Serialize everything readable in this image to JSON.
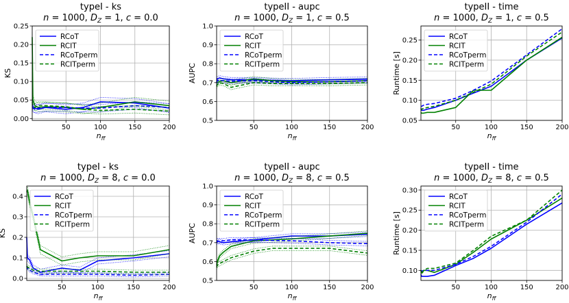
{
  "colors": {
    "rcot": "#0000ff",
    "rcit": "#008000",
    "grid": "#b0b0b0"
  },
  "legend_names": [
    "RCoT",
    "RCIT",
    "RCoTperm",
    "RCITperm"
  ],
  "chart_data": [
    {
      "type": "line",
      "title_line1": "typeI - ks",
      "title_line2": "n = 1000, D_Z = 1, c = 0.0",
      "title_parts": [
        "n",
        " = 1000, ",
        "D",
        "Z",
        " = 1, ",
        "c",
        " = 0.0"
      ],
      "xlabel": "n_ff",
      "ylabel": "KS",
      "xlim": [
        1,
        200
      ],
      "ylim": [
        -0.005,
        0.25
      ],
      "xticks": [
        50,
        100,
        150,
        200
      ],
      "yticks": [
        0.0,
        0.05,
        0.1,
        0.15,
        0.2,
        0.25
      ],
      "ytick_labels": [
        "0.00",
        "0.05",
        "0.10",
        "0.15",
        "0.20",
        "0.25"
      ],
      "x": [
        1,
        2,
        5,
        10,
        20,
        50,
        75,
        100,
        150,
        200
      ],
      "series": [
        {
          "name": "RCoT",
          "dashed": false,
          "values": [
            0.04,
            0.032,
            0.028,
            0.025,
            0.03,
            0.025,
            0.03,
            0.045,
            0.042,
            0.028
          ],
          "band": 0.012
        },
        {
          "name": "RCIT",
          "dashed": false,
          "values": [
            0.22,
            0.05,
            0.035,
            0.03,
            0.032,
            0.03,
            0.025,
            0.03,
            0.045,
            0.035
          ],
          "band": 0.012
        },
        {
          "name": "RCoTperm",
          "dashed": true,
          "values": [
            0.03,
            0.028,
            0.025,
            0.028,
            0.03,
            0.03,
            0.028,
            0.028,
            0.035,
            0.03
          ],
          "band": 0.01
        },
        {
          "name": "RCITperm",
          "dashed": true,
          "values": [
            0.045,
            0.035,
            0.03,
            0.035,
            0.035,
            0.032,
            0.025,
            0.022,
            0.025,
            0.02
          ],
          "band": 0.01
        }
      ]
    },
    {
      "type": "line",
      "title_line1": "typeII - aupc",
      "title_line2": "n = 1000, D_Z = 1, c = 0.5",
      "title_parts": [
        "n",
        " = 1000, ",
        "D",
        "Z",
        " = 1, ",
        "c",
        " = 0.5"
      ],
      "xlabel": "n_ff",
      "ylabel": "AUPC",
      "xlim": [
        1,
        200
      ],
      "ylim": [
        0.5,
        1.0
      ],
      "xticks": [
        50,
        100,
        150,
        200
      ],
      "yticks": [
        0.5,
        0.6,
        0.7,
        0.8,
        0.9,
        1.0
      ],
      "ytick_labels": [
        "0.5",
        "0.6",
        "0.7",
        "0.8",
        "0.9",
        "1.0"
      ],
      "x": [
        1,
        2,
        5,
        10,
        20,
        50,
        75,
        100,
        150,
        200
      ],
      "series": [
        {
          "name": "RCoT",
          "dashed": false,
          "values": [
            0.7,
            0.72,
            0.725,
            0.72,
            0.715,
            0.715,
            0.712,
            0.71,
            0.715,
            0.718
          ],
          "band": 0.012
        },
        {
          "name": "RCIT",
          "dashed": false,
          "values": [
            0.71,
            0.7,
            0.705,
            0.71,
            0.7,
            0.72,
            0.71,
            0.705,
            0.705,
            0.71
          ],
          "band": 0.012
        },
        {
          "name": "RCoTperm",
          "dashed": true,
          "values": [
            0.7,
            0.71,
            0.712,
            0.71,
            0.708,
            0.71,
            0.705,
            0.7,
            0.705,
            0.71
          ],
          "band": 0.012
        },
        {
          "name": "RCITperm",
          "dashed": true,
          "values": [
            0.68,
            0.69,
            0.7,
            0.695,
            0.675,
            0.7,
            0.695,
            0.695,
            0.695,
            0.7
          ],
          "band": 0.012
        }
      ]
    },
    {
      "type": "line",
      "title_line1": "typeII - time",
      "title_line2": "n = 1000, D_Z = 1, c = 0.5",
      "title_parts": [
        "n",
        " = 1000, ",
        "D",
        "Z",
        " = 1, ",
        "c",
        " = 0.5"
      ],
      "xlabel": "n_ff",
      "ylabel": "Runtime [s]",
      "xlim": [
        1,
        200
      ],
      "ylim": [
        0.05,
        0.285
      ],
      "xticks": [
        50,
        100,
        150,
        200
      ],
      "yticks": [
        0.05,
        0.1,
        0.15,
        0.2,
        0.25
      ],
      "ytick_labels": [
        "0.05",
        "0.10",
        "0.15",
        "0.20",
        "0.25"
      ],
      "x": [
        1,
        2,
        5,
        10,
        20,
        50,
        75,
        100,
        150,
        200
      ],
      "series": [
        {
          "name": "RCoT",
          "dashed": false,
          "values": [
            0.08,
            0.075,
            0.075,
            0.078,
            0.082,
            0.1,
            0.118,
            0.135,
            0.2,
            0.255
          ],
          "band": 0
        },
        {
          "name": "RCIT",
          "dashed": false,
          "values": [
            0.07,
            0.068,
            0.068,
            0.07,
            0.07,
            0.082,
            0.125,
            0.125,
            0.2,
            0.257
          ],
          "band": 0
        },
        {
          "name": "RCoTperm",
          "dashed": true,
          "values": [
            0.085,
            0.085,
            0.088,
            0.09,
            0.092,
            0.105,
            0.125,
            0.148,
            0.213,
            0.278
          ],
          "band": 0
        },
        {
          "name": "RCITperm",
          "dashed": true,
          "values": [
            0.075,
            0.078,
            0.08,
            0.082,
            0.085,
            0.1,
            0.12,
            0.14,
            0.21,
            0.27
          ],
          "band": 0
        }
      ]
    },
    {
      "type": "line",
      "title_line1": "typeI - ks",
      "title_line2": "n = 1000, D_Z = 8, c = 0.0",
      "title_parts": [
        "n",
        " = 1000, ",
        "D",
        "Z",
        " = 8, ",
        "c",
        " = 0.0"
      ],
      "xlabel": "n_ff",
      "ylabel": "KS",
      "xlim": [
        1,
        200
      ],
      "ylim": [
        -0.01,
        0.45
      ],
      "xticks": [
        50,
        100,
        150,
        200
      ],
      "yticks": [
        0.0,
        0.1,
        0.2,
        0.3,
        0.4
      ],
      "ytick_labels": [
        "0.0",
        "0.1",
        "0.2",
        "0.3",
        "0.4"
      ],
      "x": [
        1,
        2,
        5,
        10,
        20,
        50,
        75,
        100,
        150,
        200
      ],
      "series": [
        {
          "name": "RCoT",
          "dashed": false,
          "values": [
            0.2,
            0.1,
            0.09,
            0.05,
            0.03,
            0.05,
            0.04,
            0.085,
            0.1,
            0.12
          ],
          "band": 0.015
        },
        {
          "name": "RCIT",
          "dashed": false,
          "values": [
            0.42,
            0.43,
            0.37,
            0.3,
            0.14,
            0.085,
            0.1,
            0.11,
            0.11,
            0.14
          ],
          "band": 0.02
        },
        {
          "name": "RCoTperm",
          "dashed": true,
          "values": [
            0.06,
            0.05,
            0.04,
            0.03,
            0.02,
            0.02,
            0.02,
            0.02,
            0.015,
            0.02
          ],
          "band": 0.008
        },
        {
          "name": "RCITperm",
          "dashed": true,
          "values": [
            0.06,
            0.055,
            0.05,
            0.04,
            0.035,
            0.035,
            0.035,
            0.035,
            0.03,
            0.03
          ],
          "band": 0.01
        }
      ]
    },
    {
      "type": "line",
      "title_line1": "typeII - aupc",
      "title_line2": "n = 1000, D_Z = 8, c = 0.5",
      "title_parts": [
        "n",
        " = 1000, ",
        "D",
        "Z",
        " = 8, ",
        "c",
        " = 0.5"
      ],
      "xlabel": "n_ff",
      "ylabel": "AUPC",
      "xlim": [
        1,
        200
      ],
      "ylim": [
        0.5,
        1.0
      ],
      "xticks": [
        50,
        100,
        150,
        200
      ],
      "yticks": [
        0.5,
        0.6,
        0.7,
        0.8,
        0.9,
        1.0
      ],
      "ytick_labels": [
        "0.5",
        "0.6",
        "0.7",
        "0.8",
        "0.9",
        "1.0"
      ],
      "x": [
        1,
        2,
        5,
        10,
        20,
        50,
        75,
        100,
        150,
        200
      ],
      "series": [
        {
          "name": "RCoT",
          "dashed": false,
          "values": [
            0.7,
            0.71,
            0.705,
            0.7,
            0.705,
            0.715,
            0.725,
            0.735,
            0.735,
            0.745
          ],
          "band": 0.012
        },
        {
          "name": "RCIT",
          "dashed": false,
          "values": [
            0.58,
            0.6,
            0.63,
            0.65,
            0.68,
            0.71,
            0.715,
            0.72,
            0.735,
            0.75
          ],
          "band": 0.012
        },
        {
          "name": "RCoTperm",
          "dashed": true,
          "values": [
            0.7,
            0.705,
            0.71,
            0.71,
            0.715,
            0.715,
            0.712,
            0.71,
            0.7,
            0.695
          ],
          "band": 0.012
        },
        {
          "name": "RCITperm",
          "dashed": true,
          "values": [
            0.57,
            0.58,
            0.59,
            0.6,
            0.62,
            0.655,
            0.67,
            0.67,
            0.67,
            0.645
          ],
          "band": 0.012
        }
      ]
    },
    {
      "type": "line",
      "title_line1": "typeII - time",
      "title_line2": "n = 1000, D_Z = 8, c = 0.5",
      "title_parts": [
        "n",
        " = 1000, ",
        "D",
        "Z",
        " = 8, ",
        "c",
        " = 0.5"
      ],
      "xlabel": "n_ff",
      "ylabel": "Runtime [s]",
      "xlim": [
        1,
        200
      ],
      "ylim": [
        0.075,
        0.31
      ],
      "xticks": [
        50,
        100,
        150,
        200
      ],
      "yticks": [
        0.1,
        0.15,
        0.2,
        0.25,
        0.3
      ],
      "ytick_labels": [
        "0.10",
        "0.15",
        "0.20",
        "0.25",
        "0.30"
      ],
      "x": [
        1,
        2,
        5,
        10,
        20,
        50,
        75,
        100,
        150,
        200
      ],
      "series": [
        {
          "name": "RCoT",
          "dashed": false,
          "values": [
            0.09,
            0.085,
            0.085,
            0.085,
            0.088,
            0.112,
            0.13,
            0.155,
            0.215,
            0.268
          ],
          "band": 0
        },
        {
          "name": "RCIT",
          "dashed": false,
          "values": [
            0.095,
            0.095,
            0.1,
            0.1,
            0.095,
            0.115,
            0.145,
            0.178,
            0.225,
            0.28
          ],
          "band": 0
        },
        {
          "name": "RCoTperm",
          "dashed": true,
          "values": [
            0.1,
            0.098,
            0.1,
            0.1,
            0.1,
            0.115,
            0.135,
            0.16,
            0.22,
            0.29
          ],
          "band": 0
        },
        {
          "name": "RCITperm",
          "dashed": true,
          "values": [
            0.1,
            0.09,
            0.1,
            0.105,
            0.105,
            0.118,
            0.15,
            0.185,
            0.225,
            0.3
          ],
          "band": 0
        }
      ]
    }
  ]
}
